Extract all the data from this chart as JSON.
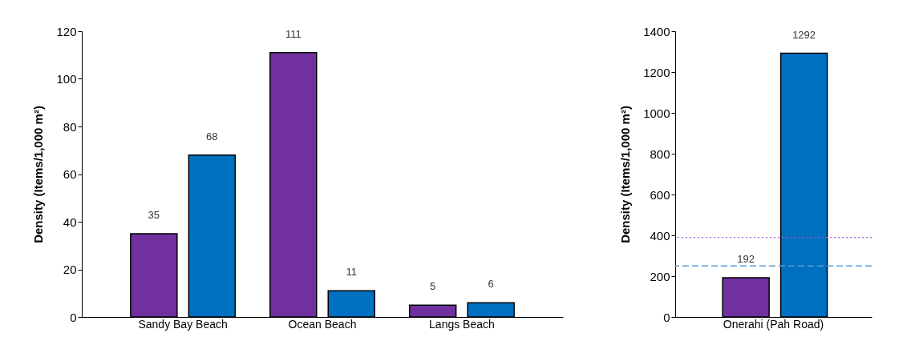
{
  "chart_data": [
    {
      "type": "bar",
      "ylabel": "Density (Items/1,000 m²)",
      "categories": [
        "Sandy Bay Beach",
        "Ocean Beach",
        "Langs Beach"
      ],
      "series": [
        {
          "color": "#7030a0",
          "values": [
            35,
            111,
            5
          ]
        },
        {
          "color": "#0070c0",
          "values": [
            68,
            11,
            6
          ]
        }
      ],
      "ylim": [
        0,
        120
      ],
      "yticks": [
        0,
        20,
        40,
        60,
        80,
        100,
        120
      ],
      "grid": false,
      "legend": false,
      "data_labels": true
    },
    {
      "type": "bar",
      "ylabel": "Density (Items/1,000 m²)",
      "categories": [
        "Onerahi (Pah Road)"
      ],
      "series": [
        {
          "color": "#7030a0",
          "values": [
            192
          ]
        },
        {
          "color": "#0070c0",
          "values": [
            1292
          ]
        }
      ],
      "ylim": [
        0,
        1400
      ],
      "yticks": [
        0,
        200,
        400,
        600,
        800,
        1000,
        1200,
        1400
      ],
      "grid": false,
      "legend": false,
      "data_labels": true,
      "ref_lines": [
        {
          "axis": "y",
          "value": 390,
          "color": "#9966cc",
          "line_style": "dotted"
        },
        {
          "axis": "y",
          "value": 250,
          "color": "#5b9bd5",
          "line_style": "dashed"
        }
      ]
    }
  ]
}
